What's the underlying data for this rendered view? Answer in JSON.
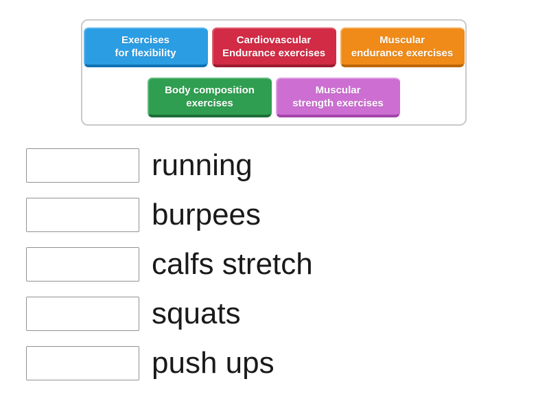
{
  "answer_bank": {
    "chips": [
      {
        "id": "exercises-for-flexibility",
        "label": "Exercises\nfor flexibility",
        "color": "#2b9de3",
        "highlight": "#5cb6ed",
        "shadow": "#0f72b2"
      },
      {
        "id": "cardiovascular-endurance-exercises",
        "label": "Cardiovascular\nEndurance exercises",
        "color": "#d22b45",
        "highlight": "#df5f70",
        "shadow": "#9e1b30"
      },
      {
        "id": "muscular-endurance-exercises",
        "label": "Muscular\nendurance exercises",
        "color": "#f08a18",
        "highlight": "#f5ab53",
        "shadow": "#bc6706"
      },
      {
        "id": "body-composition-exercises",
        "label": "Body composition\nexercises",
        "color": "#2f9e50",
        "highlight": "#5fba7c",
        "shadow": "#1c6e38"
      },
      {
        "id": "muscular-strength-exercises",
        "label": "Muscular\nstrength exercises",
        "color": "#cd6fd2",
        "highlight": "#de9ae2",
        "shadow": "#a344ab"
      }
    ]
  },
  "questions": [
    {
      "label": "running"
    },
    {
      "label": "burpees"
    },
    {
      "label": "calfs stretch"
    },
    {
      "label": "squats"
    },
    {
      "label": "push ups"
    }
  ]
}
